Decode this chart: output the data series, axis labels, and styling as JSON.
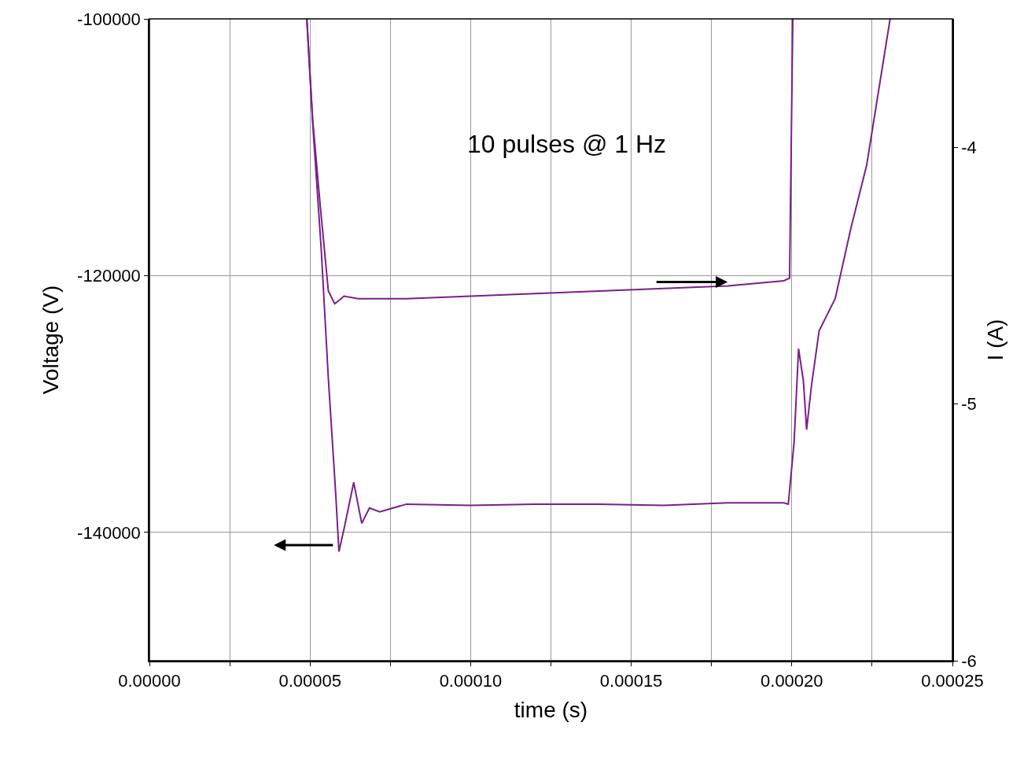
{
  "chart_data": {
    "type": "line",
    "xlabel": "time (s)",
    "ylabel": "Voltage (V)",
    "y2label": "I (A)",
    "annotations": [
      "10 pulses @ 1 Hz"
    ],
    "xlim": [
      0,
      0.00025
    ],
    "xticks": [
      {
        "value": 0,
        "label": "0.00000"
      },
      {
        "value": 2.5e-05,
        "label": null
      },
      {
        "value": 5e-05,
        "label": "0.00005"
      },
      {
        "value": 7.5e-05,
        "label": null
      },
      {
        "value": 0.0001,
        "label": "0.00010"
      },
      {
        "value": 0.000125,
        "label": null
      },
      {
        "value": 0.00015,
        "label": "0.00015"
      },
      {
        "value": 0.000175,
        "label": null
      },
      {
        "value": 0.0002,
        "label": "0.00020"
      },
      {
        "value": 0.000225,
        "label": null
      },
      {
        "value": 0.00025,
        "label": "0.00025"
      }
    ],
    "ylim": [
      -150000,
      -100000
    ],
    "yticks": [
      -100000,
      -120000,
      -140000
    ],
    "y2lim": [
      -6,
      -3.5
    ],
    "y2ticks": [
      -4,
      -5,
      -6
    ],
    "grid": true,
    "series": [
      {
        "color": "#7a1f8a",
        "x": [
          4.9e-05,
          5.08e-05,
          5.35e-05,
          5.57e-05,
          5.8e-05,
          5.9e-05,
          6.07e-05,
          6.36e-05,
          6.61e-05,
          6.85e-05,
          7.17e-05,
          8e-05,
          0.0001,
          0.00012,
          0.00014,
          0.00016,
          0.00018,
          0.0001975,
          0.0001989,
          0.0002007,
          0.0002021,
          0.0002036,
          0.0002046,
          0.0002061,
          0.0002085,
          0.0002135,
          0.0002184,
          0.0002233,
          0.0002306
        ],
        "values": [
          -100000,
          -108000,
          -118000,
          -128000,
          -137000,
          -141500,
          -139600,
          -136100,
          -139300,
          -138100,
          -138400,
          -137800,
          -137900,
          -137800,
          -137800,
          -137900,
          -137700,
          -137700,
          -137800,
          -133000,
          -125700,
          -128200,
          -132000,
          -128600,
          -124300,
          -121800,
          -116300,
          -111400,
          -100000
        ]
      },
      {
        "axis": "y2",
        "color": "#7a1f8a",
        "x": [
          4.9e-05,
          5.08e-05,
          5.32e-05,
          5.57e-05,
          5.77e-05,
          6.06e-05,
          6.5e-05,
          8e-05,
          0.0001,
          0.00012,
          0.00014,
          0.00016,
          0.00018,
          0.0001975,
          0.0001993,
          0.0002003
        ],
        "values": [
          -3.5,
          -3.89,
          -4.23,
          -4.56,
          -4.61,
          -4.58,
          -4.59,
          -4.59,
          -4.58,
          -4.57,
          -4.56,
          -4.55,
          -4.54,
          -4.52,
          -4.51,
          -3.5
        ]
      }
    ]
  }
}
